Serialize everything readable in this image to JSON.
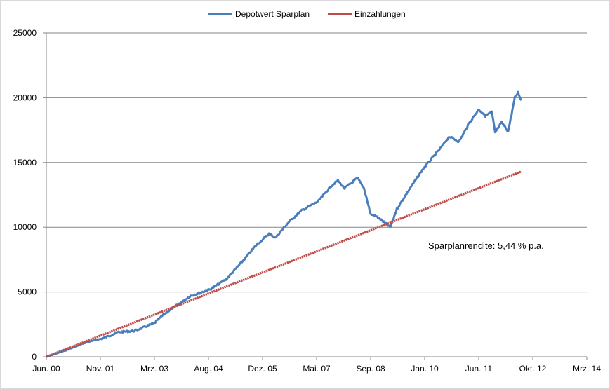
{
  "chart_data": {
    "type": "line",
    "title": "",
    "xlabel": "",
    "ylabel": "",
    "x_ticks": [
      "Jun. 00",
      "Nov. 01",
      "Mrz. 03",
      "Aug. 04",
      "Dez. 05",
      "Mai. 07",
      "Sep. 08",
      "Jan. 10",
      "Jun. 11",
      "Okt. 12",
      "Mrz. 14"
    ],
    "y_ticks": [
      "0",
      "5000",
      "10000",
      "15000",
      "20000",
      "25000"
    ],
    "ylim": [
      0,
      25000
    ],
    "xlim": [
      "2000-06",
      "2014-03"
    ],
    "grid": "horizontal",
    "legend": "top-center",
    "annotation": "Sparplanrendite: 5,44 % p.a.",
    "series": [
      {
        "name": "Depotwert Sparplan",
        "color": "#4a7ebb",
        "points": [
          [
            "2000-06",
            0
          ],
          [
            "2000-12",
            500
          ],
          [
            "2001-06",
            1100
          ],
          [
            "2001-11",
            1400
          ],
          [
            "2002-04",
            1900
          ],
          [
            "2002-09",
            2000
          ],
          [
            "2003-01",
            2400
          ],
          [
            "2003-03",
            2600
          ],
          [
            "2003-06",
            3300
          ],
          [
            "2003-10",
            4000
          ],
          [
            "2004-02",
            4700
          ],
          [
            "2004-08",
            5200
          ],
          [
            "2005-01",
            6000
          ],
          [
            "2005-06",
            7400
          ],
          [
            "2005-10",
            8600
          ],
          [
            "2006-02",
            9500
          ],
          [
            "2006-04",
            9200
          ],
          [
            "2006-08",
            10400
          ],
          [
            "2006-12",
            11300
          ],
          [
            "2007-05",
            12000
          ],
          [
            "2007-09",
            13200
          ],
          [
            "2007-11",
            13600
          ],
          [
            "2008-01",
            13000
          ],
          [
            "2008-05",
            13800
          ],
          [
            "2008-07",
            13000
          ],
          [
            "2008-09",
            11000
          ],
          [
            "2008-11",
            10800
          ],
          [
            "2009-03",
            10000
          ],
          [
            "2009-05",
            11400
          ],
          [
            "2009-09",
            13000
          ],
          [
            "2010-01",
            14500
          ],
          [
            "2010-06",
            16000
          ],
          [
            "2010-09",
            17000
          ],
          [
            "2010-12",
            16600
          ],
          [
            "2011-03",
            18000
          ],
          [
            "2011-06",
            19100
          ],
          [
            "2011-08",
            18600
          ],
          [
            "2011-10",
            18900
          ],
          [
            "2011-11",
            17300
          ],
          [
            "2012-01",
            18100
          ],
          [
            "2012-03",
            17400
          ],
          [
            "2012-05",
            20000
          ],
          [
            "2012-06",
            20400
          ],
          [
            "2012-07",
            19800
          ]
        ]
      },
      {
        "name": "Einzahlungen",
        "color": "#be4b48",
        "points": [
          [
            "2000-06",
            0
          ],
          [
            "2012-07",
            14300
          ]
        ]
      }
    ]
  }
}
